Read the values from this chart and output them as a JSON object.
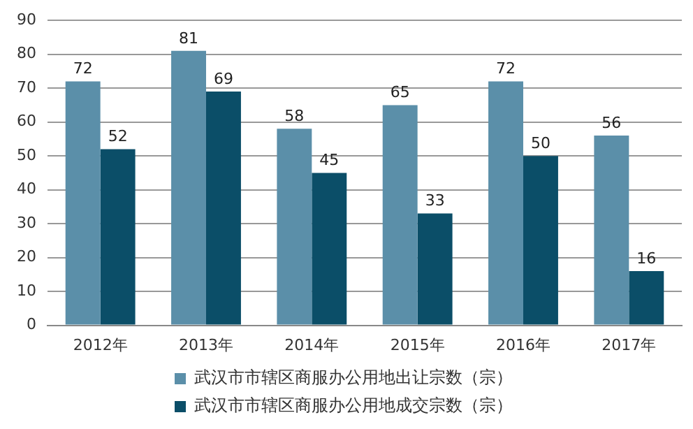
{
  "chart_data": {
    "type": "bar",
    "categories": [
      "2012年",
      "2013年",
      "2014年",
      "2015年",
      "2016年",
      "2017年"
    ],
    "series": [
      {
        "name": "武汉市市辖区商服办公用地出让宗数（宗）",
        "color": "#5b8fa9",
        "values": [
          72,
          81,
          58,
          65,
          72,
          56
        ]
      },
      {
        "name": "武汉市市辖区商服办公用地成交宗数（宗）",
        "color": "#0b4e68",
        "values": [
          52,
          69,
          45,
          33,
          50,
          16
        ]
      }
    ],
    "ylim": [
      0,
      90
    ],
    "yticks": [
      0,
      10,
      20,
      30,
      40,
      50,
      60,
      70,
      80,
      90
    ],
    "grid": "y",
    "legend": "bottom",
    "data_labels": true
  }
}
